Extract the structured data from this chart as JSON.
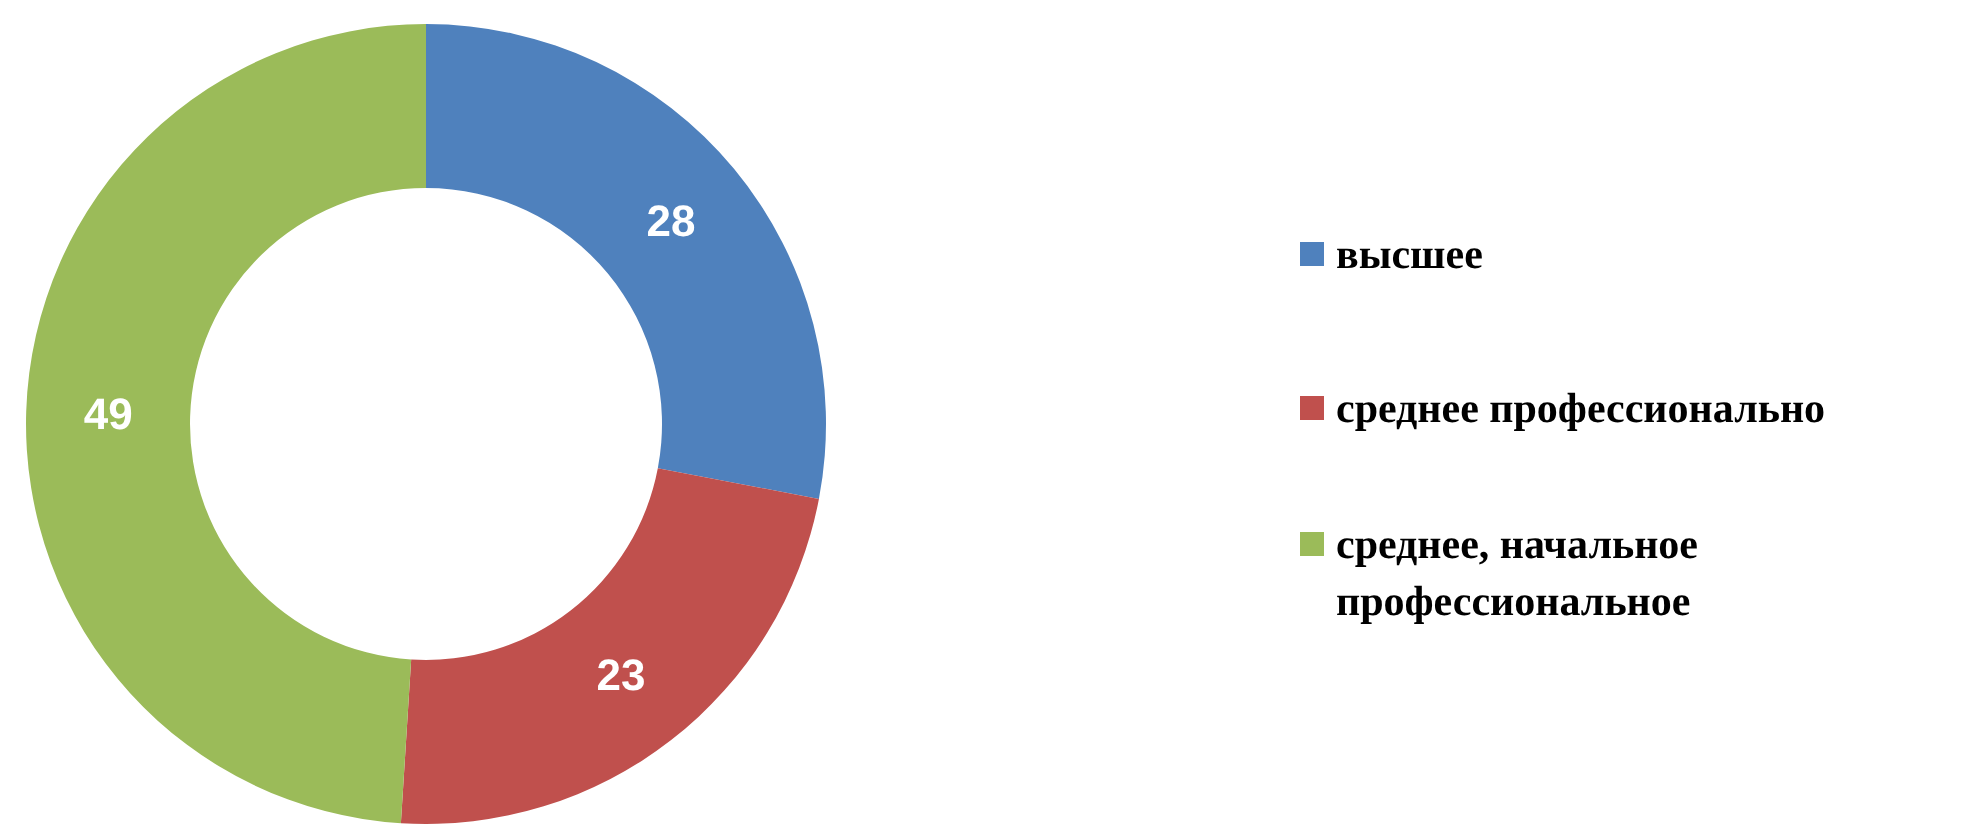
{
  "chart_data": {
    "type": "donut",
    "categories": [
      "высшее",
      "среднее профессионально",
      "среднее, начальное профессиональное"
    ],
    "values": [
      28,
      23,
      49
    ],
    "colors": [
      "#4f81bd",
      "#c0504d",
      "#9bbb59"
    ],
    "data_labels": true,
    "legend": "right"
  }
}
